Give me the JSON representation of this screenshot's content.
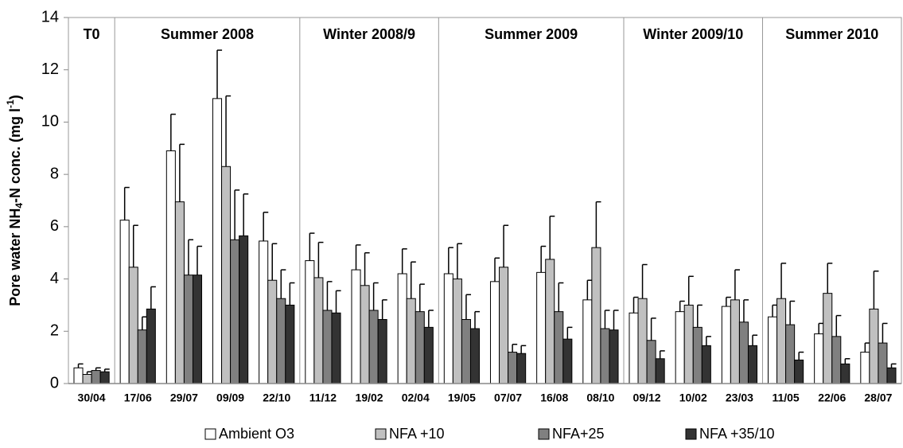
{
  "chart_data": {
    "type": "bar",
    "ylabel_parts": [
      {
        "text": "Pore water NH",
        "style": "normal"
      },
      {
        "text": "4",
        "style": "sub"
      },
      {
        "text": "-N conc.  (mg l",
        "style": "normal"
      },
      {
        "text": "-1",
        "style": "sup"
      },
      {
        "text": ")",
        "style": "normal"
      }
    ],
    "categories": [
      "30/04",
      "17/06",
      "29/07",
      "09/09",
      "22/10",
      "11/12",
      "19/02",
      "02/04",
      "19/05",
      "07/07",
      "16/08",
      "08/10",
      "09/12",
      "10/02",
      "23/03",
      "11/05",
      "22/06",
      "28/07"
    ],
    "periods": [
      {
        "label": "T0",
        "count": 1
      },
      {
        "label": "Summer 2008",
        "count": 4
      },
      {
        "label": "Winter 2008/9",
        "count": 3
      },
      {
        "label": "Summer 2009",
        "count": 4
      },
      {
        "label": "Winter 2009/10",
        "count": 3
      },
      {
        "label": "Summer 2010",
        "count": 3
      }
    ],
    "series": [
      {
        "name": "Ambient O3",
        "color": "#ffffff",
        "values": [
          0.6,
          6.25,
          8.9,
          10.9,
          5.45,
          4.7,
          4.35,
          4.2,
          4.2,
          3.9,
          4.25,
          3.2,
          2.7,
          2.75,
          2.95,
          2.55,
          1.9,
          1.2
        ],
        "errors": [
          0.15,
          1.25,
          1.4,
          1.85,
          1.1,
          1.05,
          0.95,
          0.95,
          1.0,
          0.9,
          1.0,
          0.75,
          0.6,
          0.4,
          0.35,
          0.45,
          0.4,
          0.35
        ]
      },
      {
        "name": "NFA +10",
        "color": "#c0c0c0",
        "values": [
          0.35,
          4.45,
          6.95,
          8.3,
          3.95,
          4.05,
          3.75,
          3.25,
          4.0,
          4.45,
          4.75,
          5.2,
          3.25,
          3.0,
          3.2,
          3.25,
          3.45,
          2.85
        ],
        "errors": [
          0.1,
          1.6,
          2.2,
          2.7,
          1.4,
          1.35,
          1.25,
          1.4,
          1.35,
          1.6,
          1.65,
          1.75,
          1.3,
          1.1,
          1.15,
          1.35,
          1.15,
          1.45
        ]
      },
      {
        "name": "NFA+25",
        "color": "#808080",
        "values": [
          0.5,
          2.05,
          4.15,
          5.5,
          3.25,
          2.8,
          2.8,
          2.75,
          2.45,
          1.2,
          2.75,
          2.1,
          1.65,
          2.15,
          2.35,
          2.25,
          1.8,
          1.55
        ],
        "errors": [
          0.1,
          0.5,
          1.35,
          1.9,
          1.1,
          1.1,
          1.05,
          1.05,
          0.95,
          0.3,
          1.1,
          0.7,
          0.85,
          0.85,
          0.85,
          0.9,
          0.8,
          0.75
        ]
      },
      {
        "name": "NFA +35/10",
        "color": "#333333",
        "values": [
          0.45,
          2.85,
          4.15,
          5.65,
          3.0,
          2.7,
          2.45,
          2.15,
          2.1,
          1.15,
          1.7,
          2.05,
          0.95,
          1.45,
          1.45,
          0.9,
          0.75,
          0.6
        ],
        "errors": [
          0.1,
          0.85,
          1.1,
          1.6,
          0.85,
          0.85,
          0.75,
          0.65,
          0.65,
          0.3,
          0.45,
          0.75,
          0.3,
          0.35,
          0.4,
          0.3,
          0.2,
          0.15
        ]
      }
    ],
    "ylim": [
      0,
      14
    ],
    "yticks": [
      0,
      2,
      4,
      6,
      8,
      10,
      12,
      14
    ],
    "legend": "bottom"
  }
}
